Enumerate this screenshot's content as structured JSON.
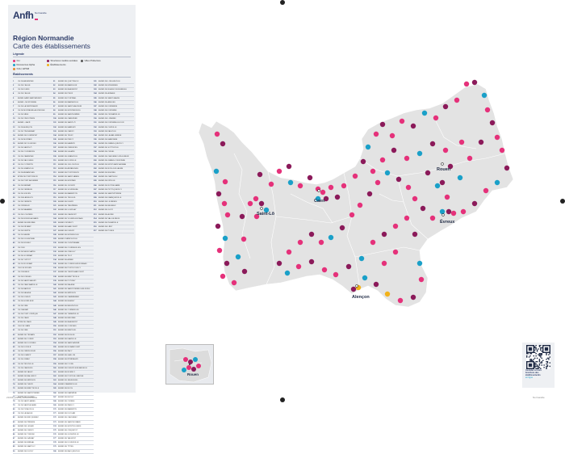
{
  "brand": {
    "logo": "Anfh",
    "region_tag": "Normandie"
  },
  "title": "Région Normandie",
  "subtitle": "Carte des établissements",
  "legend_title": "Légende",
  "legend_items": [
    {
      "label": "CH",
      "color": "#e5317a"
    },
    {
      "label": "Structures médico-sociales",
      "color": "#8b1a5a"
    },
    {
      "label": "Villes Préfecture",
      "color": "#555555"
    },
    {
      "label": "Ressources Alpha",
      "color": "#1aa0c8"
    },
    {
      "label": "Établissements",
      "color": "#f2b21a"
    },
    {
      "label": "CHU, EPSM",
      "color": "#e58b2e"
    }
  ],
  "list_title": "Établissements",
  "columns": [
    [
      {
        "n": "1",
        "t": "CH DE ARGENTAN"
      },
      {
        "n": "2",
        "t": "CH DE L'AIGLE"
      },
      {
        "n": "3",
        "t": "CH DE FLERS"
      },
      {
        "n": "4",
        "t": "CH DE L'AIGLE"
      },
      {
        "n": "5",
        "t": "EHPAD SAINT-BARTHÉLEMY"
      },
      {
        "n": "6",
        "t": "EHPAD - MONTORMEL"
      },
      {
        "n": "7",
        "t": "CH DE LA FERTÉ-MACÉ"
      },
      {
        "n": "8",
        "t": "CH DE MORTAGNE-AU-PERCHE"
      },
      {
        "n": "9",
        "t": "CH DE SÉES"
      },
      {
        "n": "10",
        "t": "CH DE VIMOUTIERS"
      },
      {
        "n": "11",
        "t": "EHPAD - GACÉ"
      },
      {
        "n": "12",
        "t": "CH DE ALENÇON"
      },
      {
        "n": "13",
        "t": "CH DE TINCHEBRAY"
      },
      {
        "n": "14",
        "t": "EHPAD DE DOMFRONT"
      },
      {
        "n": "15",
        "t": "CH DE MORTAIN"
      },
      {
        "n": "16",
        "t": "EHPAD DE VILLEDIEU"
      },
      {
        "n": "17",
        "t": "CH DE SAINT-LÔ"
      },
      {
        "n": "18",
        "t": "CH DE COUTANCES"
      },
      {
        "n": "19",
        "t": "CH DE CARENTAN"
      },
      {
        "n": "20",
        "t": "CH DE VALOGNES"
      },
      {
        "n": "21",
        "t": "CH DU COTENTIN"
      },
      {
        "n": "22",
        "t": "CH DE GRANVILLE"
      },
      {
        "n": "23",
        "t": "CH DE AVRANCHES"
      },
      {
        "n": "24",
        "t": "EPSM DE PONTORSON"
      },
      {
        "n": "25",
        "t": "CH DE PONT-AUDEMER"
      },
      {
        "n": "26",
        "t": "CH DE BERNAY"
      },
      {
        "n": "27",
        "t": "CH DE VERNEUIL"
      },
      {
        "n": "28",
        "t": "CH DE GISORS"
      },
      {
        "n": "29",
        "t": "CH DES ANDELYS"
      },
      {
        "n": "30",
        "t": "CH DE VERNON"
      },
      {
        "n": "31",
        "t": "CH D'ÉVREUX"
      },
      {
        "n": "32",
        "t": "CH DE NAVARRE"
      },
      {
        "n": "33",
        "t": "CH DE LOUVIERS"
      },
      {
        "n": "34",
        "t": "CH DE BOURG-ACHARD"
      },
      {
        "n": "35",
        "t": "EHPAD DE BRIONNE"
      },
      {
        "n": "36",
        "t": "CH DE FÉCAMP"
      },
      {
        "n": "37",
        "t": "CH DE DIEPPE"
      },
      {
        "n": "38",
        "t": "CH DU HAVRE"
      },
      {
        "n": "39",
        "t": "CH DE LILLEBONNE"
      },
      {
        "n": "40",
        "t": "CH DE BOLBEC"
      },
      {
        "n": "41",
        "t": "CH D'EU"
      },
      {
        "n": "42",
        "t": "CH DE NEUFCHÂTEL"
      },
      {
        "n": "43",
        "t": "CH DE GOURNAY"
      },
      {
        "n": "44",
        "t": "CH DE YVETOT"
      },
      {
        "n": "45",
        "t": "CH DU ROUVRAY"
      },
      {
        "n": "46",
        "t": "CHU DE ROUEN"
      },
      {
        "n": "47",
        "t": "CH D'ELBEUF"
      },
      {
        "n": "48",
        "t": "CH DE FORGES"
      },
      {
        "n": "49",
        "t": "CH DE SAINT-VALERY"
      },
      {
        "n": "50",
        "t": "CH DE CANY-BARVILLE"
      },
      {
        "n": "51",
        "t": "CH DE BAYEUX"
      },
      {
        "n": "52",
        "t": "CH DE FALAISE"
      },
      {
        "n": "53",
        "t": "CH DE LISIEUX"
      },
      {
        "n": "54",
        "t": "CH DE HONFLEUR"
      },
      {
        "n": "55",
        "t": "CH DE VIRE"
      },
      {
        "n": "56",
        "t": "CH D'AUNAY"
      },
      {
        "n": "57",
        "t": "CH DE PONT-L'ÉVÊQUE"
      },
      {
        "n": "58",
        "t": "CH DE CAEN"
      },
      {
        "n": "59",
        "t": "EPSM DE CAEN"
      },
      {
        "n": "60",
        "t": "CHU DE CAEN"
      },
      {
        "n": "61",
        "t": "CH DE VIRE"
      },
      {
        "n": "62",
        "t": "EHPAD DE TROARN"
      },
      {
        "n": "63",
        "t": "EHPAD DE CONDÉ"
      },
      {
        "n": "64",
        "t": "EHPAD DE DOUVRES"
      },
      {
        "n": "65",
        "t": "CH DE DOZULÉ"
      },
      {
        "n": "66",
        "t": "CH DE CRÉVECŒUR"
      },
      {
        "n": "67",
        "t": "CH DE LIVAROT"
      },
      {
        "n": "68",
        "t": "CH DE ORBEC"
      },
      {
        "n": "69",
        "t": "CH DE TROUVILLE"
      },
      {
        "n": "70",
        "t": "CH DE CABOURG"
      },
      {
        "n": "71",
        "t": "EHPAD DE VASSY"
      },
      {
        "n": "72",
        "t": "EHPAD DE BALLEROY"
      },
      {
        "n": "73",
        "t": "EHPAD DE MÉZIDON"
      },
      {
        "n": "74",
        "t": "EHPAD DE THURY"
      },
      {
        "n": "75",
        "t": "EHPAD DE BRETTEVILLE"
      },
      {
        "n": "76",
        "t": "EHPAD DE SAINT-PIERRE"
      },
      {
        "n": "77",
        "t": "EHPAD DE VILLERS"
      },
      {
        "n": "78",
        "t": "CH DE SAINT-JAMES"
      },
      {
        "n": "79",
        "t": "CH DE SAINT-HILAIRE"
      },
      {
        "n": "80",
        "t": "CH DE PICAUVILLE"
      },
      {
        "n": "81",
        "t": "CH DE LA HAGUE"
      },
      {
        "n": "82",
        "t": "EHPAD DE BRICQUEBEC"
      },
      {
        "n": "83",
        "t": "EHPAD DE PÉRIERS"
      },
      {
        "n": "84",
        "t": "EHPAD DE LESSAY"
      },
      {
        "n": "85",
        "t": "EHPAD DE CERISY"
      },
      {
        "n": "86",
        "t": "EHPAD DE TORIGNI"
      },
      {
        "n": "87",
        "t": "EHPAD DE GAVRAY"
      },
      {
        "n": "88",
        "t": "EHPAD DE BRÉHAL"
      },
      {
        "n": "89",
        "t": "EHPAD DE SARTILLY"
      },
      {
        "n": "90",
        "t": "EHPAD DE DUCEY"
      }
    ],
    [
      {
        "n": "91",
        "t": "EHPAD DE QUETTEHOU"
      },
      {
        "n": "92",
        "t": "EHPAD DE BARFLEUR"
      },
      {
        "n": "93",
        "t": "EHPAD DE BEAUMONT"
      },
      {
        "n": "94",
        "t": "EHPAD DE PIEUX"
      },
      {
        "n": "95",
        "t": "EHPAD DE PORTBAIL"
      },
      {
        "n": "96",
        "t": "EHPAD DE BARNEVILLE"
      },
      {
        "n": "97",
        "t": "EHPAD DE SAINT-SAUVEUR"
      },
      {
        "n": "98",
        "t": "EHPAD DE MONTEBOURG"
      },
      {
        "n": "99",
        "t": "EHPAD DE SAINTE-MÈRE"
      },
      {
        "n": "100",
        "t": "EHPAD DE CARENTAN"
      },
      {
        "n": "101",
        "t": "EHPAD DE SAINT-LÔ"
      },
      {
        "n": "102",
        "t": "EHPAD DE MARIGNY"
      },
      {
        "n": "103",
        "t": "EHPAD DE CANISY"
      },
      {
        "n": "104",
        "t": "EHPAD DE TESSY"
      },
      {
        "n": "105",
        "t": "EHPAD DE PERCY"
      },
      {
        "n": "106",
        "t": "EHPAD DE HAMBYE"
      },
      {
        "n": "107",
        "t": "EHPAD DE CERENCES"
      },
      {
        "n": "108",
        "t": "EHPAD DE LA HAYE"
      },
      {
        "n": "109",
        "t": "EHPAD DE GRANVILLE"
      },
      {
        "n": "110",
        "t": "EHPAD DE DONVILLE"
      },
      {
        "n": "111",
        "t": "EHPAD DE JULLOUVILLE"
      },
      {
        "n": "112",
        "t": "EHPAD DE AVRANCHES"
      },
      {
        "n": "113",
        "t": "EHPAD DE PONTORSON"
      },
      {
        "n": "114",
        "t": "EHPAD DE SAINT-JAMES"
      },
      {
        "n": "115",
        "t": "EHPAD DE MORTAIN"
      },
      {
        "n": "116",
        "t": "EHPAD DE JUVIGNY"
      },
      {
        "n": "117",
        "t": "EHPAD DE SOURDEVAL"
      },
      {
        "n": "118",
        "t": "EHPAD DE BARENTON"
      },
      {
        "n": "119",
        "t": "EHPAD DU TEILLEUL"
      },
      {
        "n": "120",
        "t": "EHPAD DE ISIGNY"
      },
      {
        "n": "121",
        "t": "EHPAD DE TREVIÈRES"
      },
      {
        "n": "122",
        "t": "EHPAD DE LE MOLAY"
      },
      {
        "n": "123",
        "t": "EHPAD DE CAUMONT"
      },
      {
        "n": "124",
        "t": "EHPAD DE VILLERS-BOCAGE"
      },
      {
        "n": "125",
        "t": "EHPAD D'EVRECY"
      },
      {
        "n": "126",
        "t": "EHPAD DE HARCOURT"
      },
      {
        "n": "127",
        "t": "EHPAD DE FLEURY"
      },
      {
        "n": "128",
        "t": "EHPAD DE MONDEVILLE"
      },
      {
        "n": "129",
        "t": "EHPAD D'HÉROUVILLE"
      },
      {
        "n": "130",
        "t": "EHPAD DE OUISTREHAM"
      },
      {
        "n": "131",
        "t": "EHPAD DE COURSEULLES"
      },
      {
        "n": "132",
        "t": "EHPAD DE CREULLY"
      },
      {
        "n": "133",
        "t": "EHPAD DE TILLY"
      },
      {
        "n": "134",
        "t": "EHPAD DE AUNAY"
      },
      {
        "n": "135",
        "t": "EHPAD DE CONDÉ-SUR-NOIREAU"
      },
      {
        "n": "136",
        "t": "EHPAD DE PONT-D'OUILLY"
      },
      {
        "n": "137",
        "t": "EHPAD DE THURY-HARCOURT"
      },
      {
        "n": "138",
        "t": "EHPAD DE BRETTEVILLE"
      },
      {
        "n": "139",
        "t": "EHPAD DE POTIGNY"
      },
      {
        "n": "140",
        "t": "EHPAD DE FALAISE"
      },
      {
        "n": "141",
        "t": "EHPAD DE SAINT-PIERRE-SUR-DIVES"
      },
      {
        "n": "142",
        "t": "EHPAD DE MÉZIDON"
      },
      {
        "n": "143",
        "t": "EHPAD DE CAMBREMER"
      },
      {
        "n": "144",
        "t": "EHPAD DE BLANGY"
      },
      {
        "n": "145",
        "t": "EHPAD DE BEUZEVILLE"
      },
      {
        "n": "146",
        "t": "EHPAD DE CORMEILLES"
      },
      {
        "n": "147",
        "t": "EHPAD DE THIBERVILLE"
      },
      {
        "n": "148",
        "t": "EHPAD DE BRIONNE"
      },
      {
        "n": "149",
        "t": "EHPAD DE BEAUMONT"
      },
      {
        "n": "150",
        "t": "EHPAD DE CONCHES"
      },
      {
        "n": "151",
        "t": "EHPAD DE BRETEUIL"
      },
      {
        "n": "152",
        "t": "EHPAD DE RUGLES"
      },
      {
        "n": "153",
        "t": "EHPAD DE DAMVILLE"
      },
      {
        "n": "154",
        "t": "EHPAD DE SAINT-ANDRÉ"
      },
      {
        "n": "155",
        "t": "EHPAD DE NONANCOURT"
      },
      {
        "n": "156",
        "t": "EHPAD DE PACY"
      },
      {
        "n": "157",
        "t": "EHPAD DE GAILLON"
      },
      {
        "n": "158",
        "t": "EHPAD DE ÉTRÉPAGNY"
      },
      {
        "n": "159",
        "t": "EHPAD DE LYONS"
      },
      {
        "n": "160",
        "t": "EHPAD DE FLEURY-SUR-ANDELLE"
      },
      {
        "n": "161",
        "t": "EHPAD DE ROMILLY"
      },
      {
        "n": "162",
        "t": "EHPAD DE PONT-DE-L'ARCHE"
      },
      {
        "n": "163",
        "t": "EHPAD DU NEUBOURG"
      },
      {
        "n": "164",
        "t": "EHPAD D'AMFREVILLE"
      },
      {
        "n": "165",
        "t": "EHPAD DE BOOS"
      },
      {
        "n": "166",
        "t": "EHPAD DE DARNÉTAL"
      },
      {
        "n": "167",
        "t": "EHPAD DE BUCHY"
      },
      {
        "n": "168",
        "t": "EHPAD DE CLÈRES"
      },
      {
        "n": "169",
        "t": "EHPAD DE PAVILLY"
      },
      {
        "n": "170",
        "t": "EHPAD DE BARENTIN"
      },
      {
        "n": "171",
        "t": "EHPAD DE DUCLAIR"
      },
      {
        "n": "172",
        "t": "EHPAD DE CAUDEBEC"
      },
      {
        "n": "173",
        "t": "EHPAD DE SAINT-ROMAIN"
      },
      {
        "n": "174",
        "t": "EHPAD DE MONTIVILLIERS"
      },
      {
        "n": "175",
        "t": "EHPAD DE CRIQUETOT"
      },
      {
        "n": "176",
        "t": "EHPAD DE GODERVILLE"
      },
      {
        "n": "177",
        "t": "EHPAD DE VALMONT"
      },
      {
        "n": "178",
        "t": "EHPAD DE DOUDEVILLE"
      },
      {
        "n": "179",
        "t": "EHPAD DE TÔTES"
      },
      {
        "n": "180",
        "t": "EHPAD DE BACQUEVILLE"
      }
    ],
    [
      {
        "n": "181",
        "t": "EHPAD DE LONGUEVILLE"
      },
      {
        "n": "182",
        "t": "EHPAD DE ENVERMEU"
      },
      {
        "n": "183",
        "t": "EHPAD DE BLANGY-SUR-BRESLE"
      },
      {
        "n": "184",
        "t": "EHPAD DE AUMALE"
      },
      {
        "n": "185",
        "t": "EHPAD DE SAINT-SAËNS"
      },
      {
        "n": "186",
        "t": "EHPAD DE ARGUEIL"
      },
      {
        "n": "187",
        "t": "EHPAD DE FORMERIE"
      },
      {
        "n": "188",
        "t": "EHPAD DE FONTAINE"
      },
      {
        "n": "189",
        "t": "EHPAD DE OFFRANVILLE"
      },
      {
        "n": "190",
        "t": "EHPAD DE LUNERAY"
      },
      {
        "n": "191",
        "t": "EHPAD DE FONTAINE-LE-DUN"
      },
      {
        "n": "192",
        "t": "EHPAD DE OURVILLE"
      },
      {
        "n": "193",
        "t": "EHPAD DE FAUVILLE"
      },
      {
        "n": "194",
        "t": "EHPAD DE LA MAILLERAYE"
      },
      {
        "n": "195",
        "t": "EHPAD DE MAROMME"
      },
      {
        "n": "196",
        "t": "EHPAD DE GRAND-QUEVILLY"
      },
      {
        "n": "197",
        "t": "EHPAD DE SOTTEVILLE"
      },
      {
        "n": "198",
        "t": "EHPAD DE OISSEL"
      },
      {
        "n": "199",
        "t": "EHPAD DE CAUDEBEC-LÈS-ELBEUF"
      },
      {
        "n": "200",
        "t": "EHPAD DE GRAND-COURONNE"
      },
      {
        "n": "201",
        "t": "EHPAD DE MONT-SAINT-AIGNAN"
      },
      {
        "n": "202",
        "t": "EHPAD DE BOIS-GUILLAUME"
      },
      {
        "n": "203",
        "t": "EHPAD DE BIHOREL"
      },
      {
        "n": "204",
        "t": "EHPAD DE CANTELEU"
      },
      {
        "n": "205",
        "t": "EHPAD DE DÉVILLE"
      },
      {
        "n": "206",
        "t": "EHPAD DE NOTRE-DAME"
      },
      {
        "n": "207",
        "t": "EHPAD DE PETIT-QUEVILLY"
      },
      {
        "n": "208",
        "t": "EHPAD DE SAINT-ÉTIENNE"
      },
      {
        "n": "209",
        "t": "EHPAD DE FRANQUEVILLE"
      },
      {
        "n": "210",
        "t": "EHPAD DE LE MESNIL"
      },
      {
        "n": "211",
        "t": "EHPAD DE BELBEUF"
      },
      {
        "n": "212",
        "t": "EHPAD DE GOUY"
      },
      {
        "n": "213",
        "t": "EHPAD DE ALIZAY"
      },
      {
        "n": "214",
        "t": "EHPAD DE VAL-DE-REUIL"
      },
      {
        "n": "215",
        "t": "EHPAD DE INCARVILLE"
      },
      {
        "n": "216",
        "t": "EHPAD DE LÉRY"
      },
      {
        "n": "217",
        "t": "EHPAD DE POSES"
      }
    ]
  ],
  "cities": [
    {
      "name": "Rouen"
    },
    {
      "name": "Caen"
    },
    {
      "name": "Saint-Lô"
    },
    {
      "name": "Évreux"
    },
    {
      "name": "Alençon"
    }
  ],
  "inset_city": "Rouen",
  "qr": {
    "line1": "Accédez à notre",
    "line2": "brochure des",
    "line3": "établissements",
    "line4": "en ligne"
  },
  "footer_left": "21004_ANFH_NORMANDIE",
  "footer_right": "Normandie"
}
